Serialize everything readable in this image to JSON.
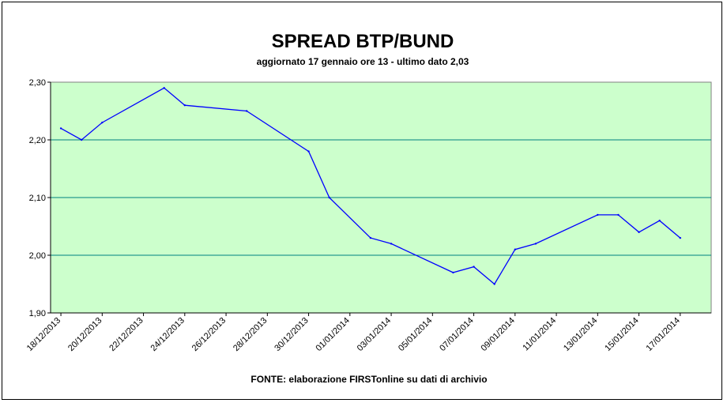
{
  "chart_data": {
    "type": "line",
    "title": "SPREAD BTP/BUND",
    "subtitle": "aggiornato 17 gennaio ore 13 - ultimo dato 2,03",
    "source": "FONTE: elaborazione FIRSTonline su dati di archivio",
    "xlabel": "",
    "ylabel": "",
    "ylim": [
      1.9,
      2.3
    ],
    "y_ticks": [
      "2,30",
      "2,20",
      "2,10",
      "2,00",
      "1,90"
    ],
    "x_ticks": [
      "18/12/2013",
      "20/12/2013",
      "22/12/2013",
      "24/12/2013",
      "26/12/2013",
      "28/12/2013",
      "30/12/2013",
      "01/01/2014",
      "03/01/2014",
      "05/01/2014",
      "07/01/2014",
      "09/01/2014",
      "11/01/2014",
      "13/01/2014",
      "15/01/2014",
      "17/01/2014"
    ],
    "grid": true,
    "plot_background": "#ccffcc",
    "gridline_color": "#008080",
    "series": [
      {
        "color": "#0000ff",
        "x": [
          "18/12/2013",
          "19/12/2013",
          "20/12/2013",
          "23/12/2013",
          "24/12/2013",
          "27/12/2013",
          "30/12/2013",
          "31/12/2013",
          "02/01/2014",
          "03/01/2014",
          "06/01/2014",
          "07/01/2014",
          "08/01/2014",
          "09/01/2014",
          "10/01/2014",
          "13/01/2014",
          "14/01/2014",
          "15/01/2014",
          "16/01/2014",
          "17/01/2014"
        ],
        "values": [
          2.22,
          2.2,
          2.23,
          2.29,
          2.26,
          2.25,
          2.18,
          2.1,
          2.03,
          2.02,
          1.97,
          1.98,
          1.95,
          2.01,
          2.02,
          2.07,
          2.07,
          2.04,
          2.06,
          2.03
        ]
      }
    ]
  }
}
